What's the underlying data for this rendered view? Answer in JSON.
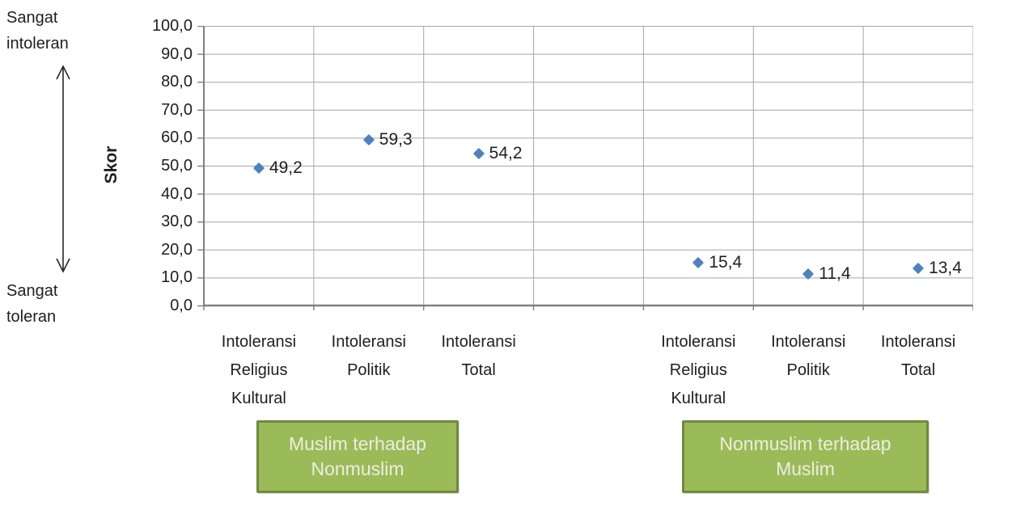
{
  "page": {
    "background": "#ffffff"
  },
  "annotations": {
    "top_label_lines": [
      "Sangat",
      "intoleran"
    ],
    "bottom_label_lines": [
      "Sangat",
      "toleran"
    ]
  },
  "chart_data": {
    "type": "scatter",
    "title": "",
    "ylabel": "Skor",
    "xlabel": "",
    "ylim": [
      0,
      100
    ],
    "ytick_step": 10,
    "ytick_labels": [
      "100,0",
      "90,0",
      "80,0",
      "70,0",
      "60,0",
      "50,0",
      "40,0",
      "30,0",
      "20,0",
      "10,0",
      "0,0"
    ],
    "grid": true,
    "legend": "none",
    "marker": "diamond",
    "groups": [
      {
        "box_label_lines": [
          "Muslim terhadap",
          "Nonmuslim"
        ],
        "points": [
          {
            "category_lines": [
              "Intoleransi",
              "Religius",
              "Kultural"
            ],
            "value": 49.2,
            "label": "49,2"
          },
          {
            "category_lines": [
              "Intoleransi",
              "Politik"
            ],
            "value": 59.3,
            "label": "59,3"
          },
          {
            "category_lines": [
              "Intoleransi",
              "Total"
            ],
            "value": 54.2,
            "label": "54,2"
          }
        ]
      },
      {
        "box_label_lines": [
          "Nonmuslim terhadap",
          "Muslim"
        ],
        "points": [
          {
            "category_lines": [
              "Intoleransi",
              "Religius",
              "Kultural"
            ],
            "value": 15.4,
            "label": "15,4"
          },
          {
            "category_lines": [
              "Intoleransi",
              "Politik"
            ],
            "value": 11.4,
            "label": "11,4"
          },
          {
            "category_lines": [
              "Intoleransi",
              "Total"
            ],
            "value": 13.4,
            "label": "13,4"
          }
        ]
      }
    ]
  },
  "colors": {
    "marker": "#4F81BD",
    "box_fill": "#9BBB59",
    "box_border": "#71893F",
    "box_text": "#EEECE1",
    "gridline": "#A6A6A6",
    "axis": "#808080",
    "text": "#1F1F1F"
  }
}
